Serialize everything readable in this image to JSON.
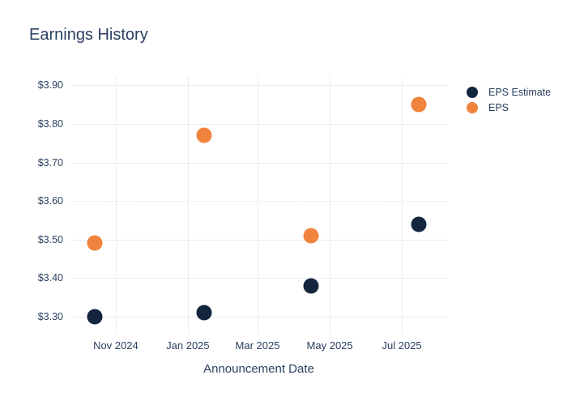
{
  "chart_data": {
    "type": "scatter",
    "title": "Earnings History",
    "xlabel": "Announcement Date",
    "ylabel": "",
    "legend_position": "right",
    "grid": true,
    "colors": {
      "text": "#2a3f5f",
      "grid": "#e9edf6",
      "special_grid": "#e9e2ef",
      "background": "#ffffff"
    },
    "x_ticks": [
      {
        "label": "Nov 2024",
        "date": "2024-11-01"
      },
      {
        "label": "Jan 2025",
        "date": "2025-01-01"
      },
      {
        "label": "Mar 2025",
        "date": "2025-03-01"
      },
      {
        "label": "May 2025",
        "date": "2025-05-01"
      },
      {
        "label": "Jul 2025",
        "date": "2025-07-01"
      }
    ],
    "y_ticks": [
      {
        "label": "$3.90",
        "value": 3.9
      },
      {
        "label": "$3.80",
        "value": 3.8
      },
      {
        "label": "$3.70",
        "value": 3.7
      },
      {
        "label": "$3.60",
        "value": 3.6
      },
      {
        "label": "$3.50",
        "value": 3.5
      },
      {
        "label": "$3.40",
        "value": 3.4
      },
      {
        "label": "$3.30",
        "value": 3.3
      }
    ],
    "x_range": [
      "2024-09-23",
      "2025-08-09"
    ],
    "y_range": [
      3.253,
      3.924
    ],
    "special_gridline": {
      "value": 3.6,
      "style": "dotted"
    },
    "series": [
      {
        "name": "EPS Estimate",
        "color": "#13263e",
        "points": [
          {
            "x": "2024-10-14",
            "y": 3.3
          },
          {
            "x": "2025-01-15",
            "y": 3.31
          },
          {
            "x": "2025-04-15",
            "y": 3.38
          },
          {
            "x": "2025-07-15",
            "y": 3.54
          }
        ]
      },
      {
        "name": "EPS",
        "color": "#f0843d",
        "points": [
          {
            "x": "2024-10-14",
            "y": 3.49
          },
          {
            "x": "2025-01-15",
            "y": 3.77
          },
          {
            "x": "2025-04-15",
            "y": 3.51
          },
          {
            "x": "2025-07-15",
            "y": 3.85
          }
        ]
      }
    ]
  }
}
